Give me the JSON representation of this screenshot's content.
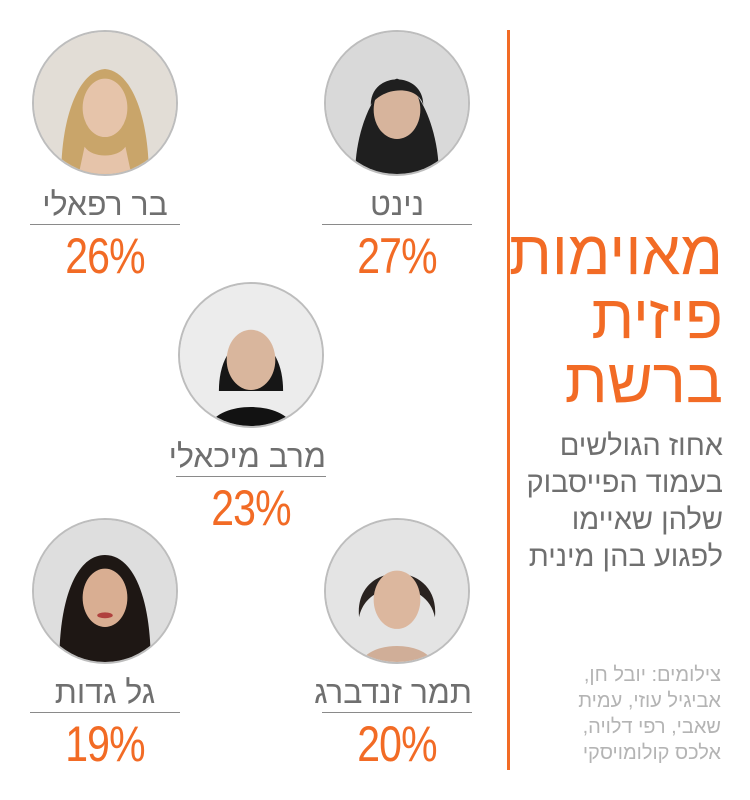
{
  "chart_data": {
    "type": "bar",
    "title_lines": [
      "מאוימות",
      "פיזית",
      "ברשת"
    ],
    "subtitle_lines": [
      "אחוז הגולשים",
      "בעמוד הפייסבוק",
      "שלהן שאיימו",
      "לפגוע בהן מינית"
    ],
    "categories": [
      "נינט",
      "בר רפאלי",
      "מרב מיכאלי",
      "תמר זנדברג",
      "גל גדות"
    ],
    "values": [
      27,
      26,
      23,
      20,
      19
    ],
    "labels": [
      "27%",
      "26%",
      "23%",
      "20%",
      "19%"
    ],
    "unit": "%"
  },
  "credits_lines": [
    "צילומים: יובל חן,",
    "אביגיל עוזי, עמית",
    "שאבי, רפי דלויה,",
    "אלכס קולומויסקי"
  ],
  "colors": {
    "accent": "#f26b25",
    "name_text": "#6f6f6f",
    "credit_text": "#b4b4b4"
  },
  "icons": [
    "portrait-photo"
  ]
}
